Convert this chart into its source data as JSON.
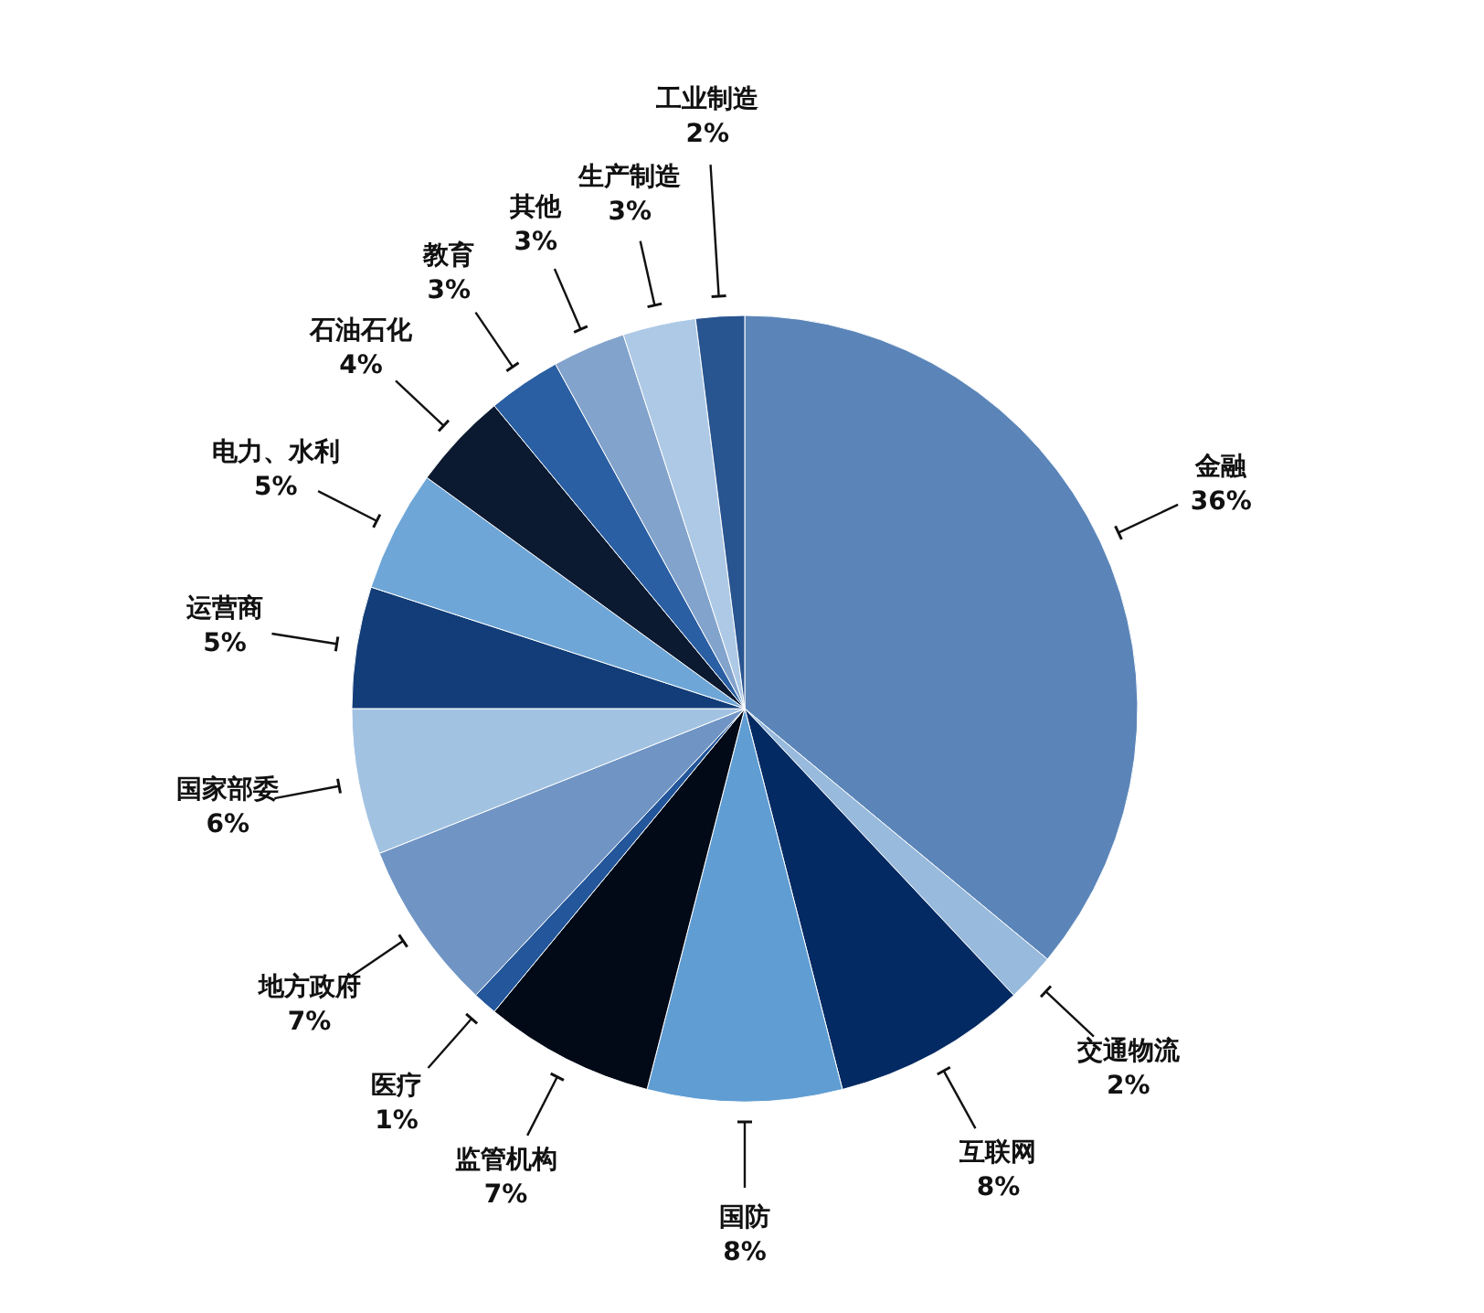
{
  "chart_data": {
    "type": "pie",
    "categories": [
      "金融",
      "交通物流",
      "互联网",
      "国防",
      "监管机构",
      "医疗",
      "地方政府",
      "国家部委",
      "运营商",
      "电力、水利",
      "石油石化",
      "教育",
      "其他",
      "生产制造",
      "工业制造"
    ],
    "values": [
      36,
      2,
      8,
      8,
      7,
      1,
      7,
      6,
      5,
      5,
      4,
      3,
      3,
      3,
      2
    ],
    "colors": [
      "#5b85b8",
      "#98badc",
      "#032a63",
      "#5f9dd3",
      "#020a17",
      "#23569a",
      "#7095c4",
      "#a2c2e2",
      "#123d78",
      "#6ea6d7",
      "#0b1a30",
      "#2b5fa3",
      "#82a3cc",
      "#adc9e6",
      "#28548f"
    ],
    "value_labels": [
      "36%",
      "2%",
      "8%",
      "8%",
      "7%",
      "1%",
      "7%",
      "6%",
      "5%",
      "5%",
      "4%",
      "3%",
      "3%",
      "3%",
      "2%"
    ]
  }
}
